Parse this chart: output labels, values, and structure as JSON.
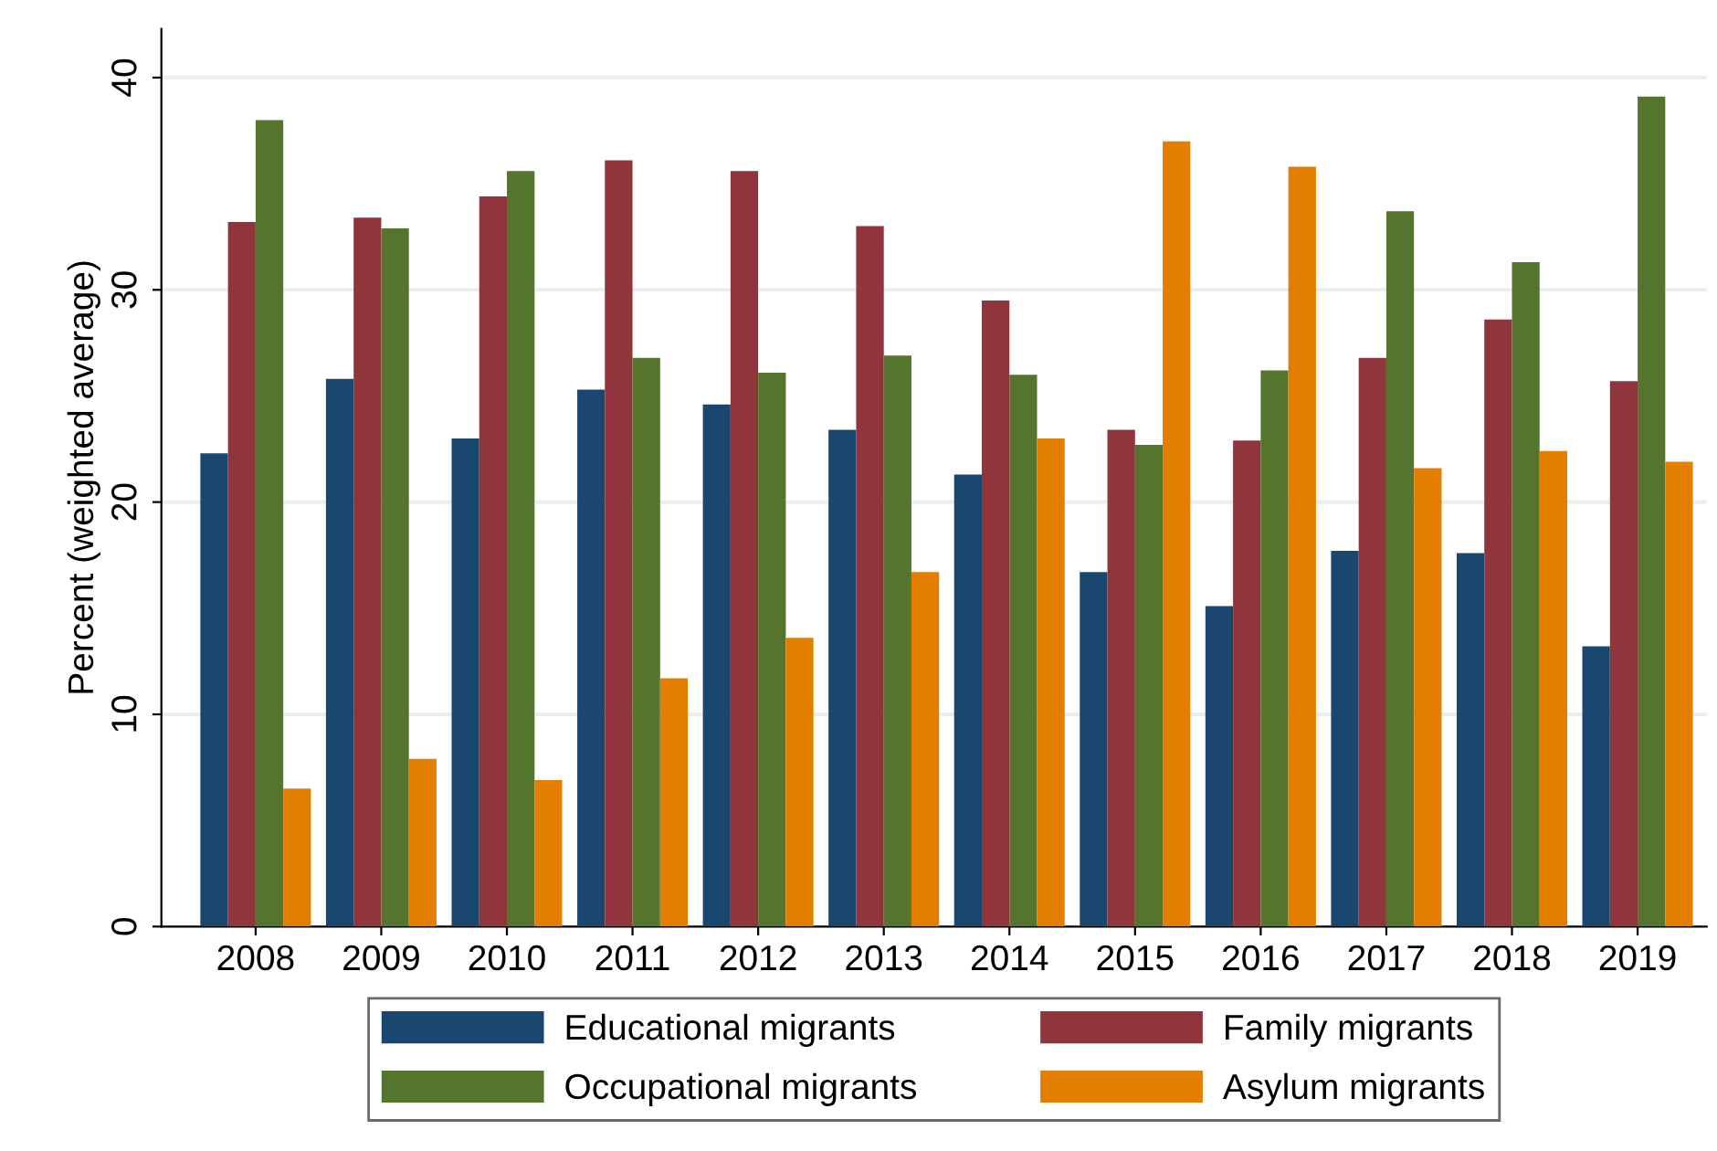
{
  "chart_data": {
    "type": "bar",
    "ylabel": "Percent (weighted average)",
    "categories": [
      "2008",
      "2009",
      "2010",
      "2011",
      "2012",
      "2013",
      "2014",
      "2015",
      "2016",
      "2017",
      "2018",
      "2019"
    ],
    "series": [
      {
        "name": "Educational migrants",
        "color": "#1a476f",
        "values": [
          22.3,
          25.8,
          23.0,
          25.3,
          24.6,
          23.4,
          21.3,
          16.7,
          15.1,
          17.7,
          17.6,
          13.2
        ]
      },
      {
        "name": "Family migrants",
        "color": "#90353b",
        "values": [
          33.2,
          33.4,
          34.4,
          36.1,
          35.6,
          33.0,
          29.5,
          23.4,
          22.9,
          26.8,
          28.6,
          25.7
        ]
      },
      {
        "name": "Occupational migrants",
        "color": "#55752f",
        "values": [
          38.0,
          32.9,
          35.6,
          26.8,
          26.1,
          26.9,
          26.0,
          22.7,
          26.2,
          33.7,
          31.3,
          39.1
        ]
      },
      {
        "name": "Asylum migrants",
        "color": "#e37e00",
        "values": [
          6.5,
          7.9,
          6.9,
          11.7,
          13.6,
          16.7,
          23.0,
          37.0,
          35.8,
          21.6,
          22.4,
          21.9
        ]
      }
    ],
    "ylim": [
      0,
      42.3
    ],
    "yticks": [
      0,
      10,
      20,
      30,
      40
    ],
    "grid": "y",
    "legend": "bottom"
  }
}
